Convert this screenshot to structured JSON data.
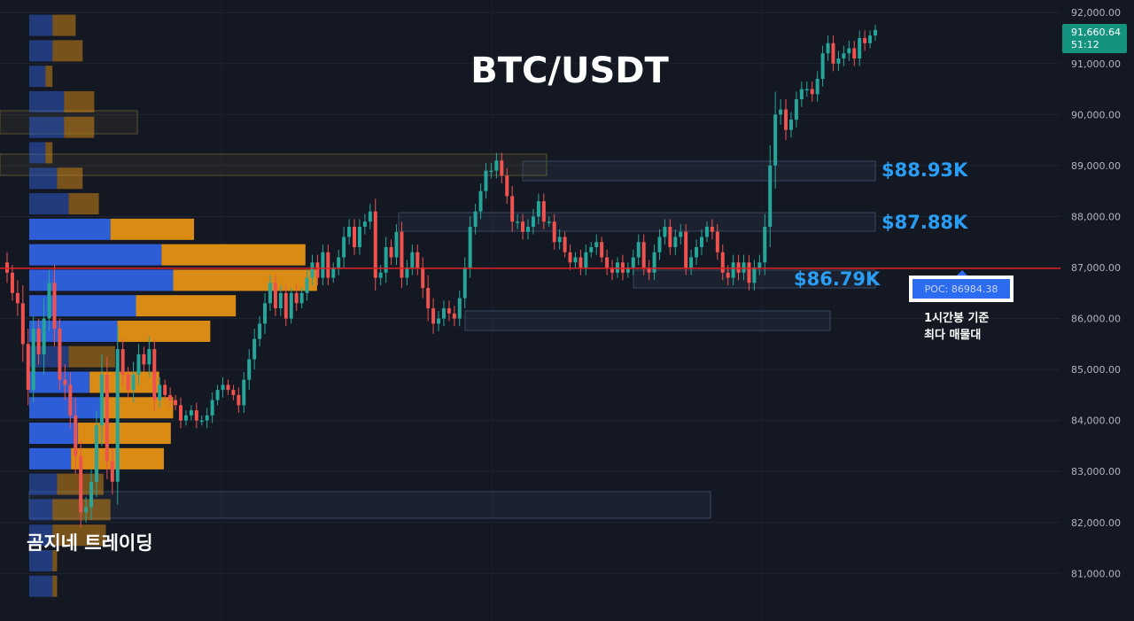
{
  "title": "BTC/USDT",
  "watermark": "곰지네 트레이딩",
  "colors": {
    "background": "#141823",
    "up": "#26a69a",
    "down": "#ef5350",
    "vp_buy": "#2d5ed8",
    "vp_sell": "#d98b14",
    "poc_line": "#e02020",
    "level_label": "#2a9df4",
    "price_badge": "#14947f"
  },
  "price_axis": {
    "ticks": [
      "92,000.00",
      "91,000.00",
      "90,000.00",
      "89,000.00",
      "88,000.00",
      "87,000.00",
      "86,000.00",
      "85,000.00",
      "84,000.00",
      "83,000.00",
      "82,000.00",
      "81,000.00"
    ]
  },
  "current_price": {
    "price": "91,660.64",
    "countdown": "51:12"
  },
  "levels": [
    {
      "label": "$88.93K",
      "price": 88930
    },
    {
      "label": "$87.88K",
      "price": 87880
    },
    {
      "label": "$86.79K",
      "price": 86790
    }
  ],
  "poc": {
    "label": "POC: 86984.38",
    "price": 86984.38,
    "note_line1": "1시간봉 기준",
    "note_line2": "최다 매물대"
  },
  "chart_data": {
    "type": "candlestick",
    "title": "BTC/USDT",
    "timeframe": "1h",
    "ylim": [
      80200,
      92300
    ],
    "volume_profile": {
      "price_bins": [
        91750,
        91250,
        90750,
        90250,
        89750,
        89250,
        88750,
        88250,
        87750,
        87250,
        86750,
        86250,
        85750,
        85250,
        84750,
        84250,
        83750,
        83250,
        82750,
        82250,
        81750,
        81250,
        80750
      ],
      "buy": [
        1.0,
        1.0,
        0.7,
        1.5,
        1.5,
        0.7,
        1.2,
        1.7,
        3.5,
        5.7,
        6.2,
        4.6,
        3.8,
        1.7,
        2.6,
        3.1,
        2.1,
        1.8,
        1.2,
        1.0,
        1.0,
        1.0,
        1.0
      ],
      "sell": [
        1.0,
        1.3,
        0.3,
        1.3,
        1.3,
        0.3,
        1.1,
        1.3,
        3.6,
        6.2,
        6.2,
        4.3,
        4.0,
        2.0,
        3.0,
        3.1,
        4.0,
        4.0,
        2.0,
        2.5,
        2.3,
        0.2,
        0.2
      ]
    },
    "candles_close": [
      86900,
      86500,
      86300,
      85500,
      84600,
      85800,
      85300,
      86000,
      86700,
      85800,
      84800,
      84700,
      84100,
      83300,
      82200,
      82300,
      82800,
      83900,
      84900,
      83200,
      82800,
      85400,
      84900,
      84600,
      84900,
      85300,
      85100,
      85400,
      84400,
      84700,
      84500,
      84400,
      84300,
      84000,
      84100,
      84200,
      84000,
      84000,
      84100,
      84400,
      84600,
      84700,
      84600,
      84500,
      84300,
      84800,
      85200,
      85600,
      85900,
      86300,
      86700,
      86200,
      86500,
      86000,
      86500,
      86300,
      86500,
      86800,
      87100,
      86800,
      87300,
      86800,
      87000,
      87200,
      87600,
      87800,
      87400,
      87800,
      87900,
      88100,
      86800,
      86900,
      87400,
      87200,
      87700,
      86800,
      87000,
      87300,
      87000,
      86600,
      86200,
      85900,
      86000,
      86200,
      86100,
      86000,
      86400,
      87000,
      87800,
      88100,
      88500,
      88900,
      88900,
      89100,
      88800,
      88400,
      87900,
      87900,
      87700,
      87800,
      88000,
      88300,
      87900,
      87900,
      87500,
      87600,
      87300,
      87100,
      87200,
      87000,
      87300,
      87400,
      87500,
      87200,
      87000,
      86900,
      87100,
      86900,
      87000,
      87200,
      87500,
      87000,
      86900,
      87300,
      87600,
      87800,
      87400,
      87600,
      87700,
      87000,
      87200,
      87400,
      87600,
      87800,
      87700,
      87300,
      86900,
      86800,
      87100,
      86900,
      87100,
      86700,
      87000,
      87100,
      87800,
      89000,
      90000,
      90100,
      89700,
      89900,
      90300,
      90500,
      90500,
      90400,
      90700,
      91200,
      91400,
      91000,
      91100,
      91200,
      91300,
      91100,
      91500,
      91400,
      91550,
      91660
    ],
    "candles_rng": [
      400,
      300,
      500,
      700,
      600,
      500,
      400,
      800,
      500,
      700,
      400,
      600,
      500,
      700,
      600,
      400,
      500,
      600,
      800,
      700,
      500,
      900,
      400,
      300,
      500,
      400,
      300,
      500,
      400,
      300,
      200,
      300,
      200,
      300,
      200,
      200,
      300,
      200,
      300,
      300,
      200,
      300,
      200,
      200,
      300,
      300,
      400,
      400,
      300,
      400,
      300,
      300,
      300,
      300,
      200,
      300,
      200,
      300,
      300,
      300,
      300,
      300,
      200,
      300,
      400,
      300,
      300,
      300,
      300,
      300,
      500,
      300,
      400,
      300,
      300,
      400,
      300,
      300,
      300,
      400,
      500,
      400,
      300,
      300,
      300,
      300,
      300,
      400,
      400,
      300,
      300,
      300,
      300,
      300,
      300,
      300,
      400,
      300,
      300,
      300,
      300,
      300,
      300,
      200,
      300,
      300,
      200,
      300,
      200,
      300,
      300,
      200,
      300,
      200,
      300,
      300,
      200,
      300,
      200,
      300,
      300,
      300,
      300,
      300,
      300,
      300,
      300,
      300,
      300,
      300,
      300,
      300,
      300,
      200,
      300,
      300,
      300,
      300,
      300,
      300,
      300,
      300,
      300,
      300,
      500,
      800,
      900,
      400,
      400,
      300,
      300,
      300,
      300,
      300,
      300,
      300,
      300,
      300,
      300,
      300,
      300,
      300,
      300,
      300,
      200,
      200
    ]
  }
}
